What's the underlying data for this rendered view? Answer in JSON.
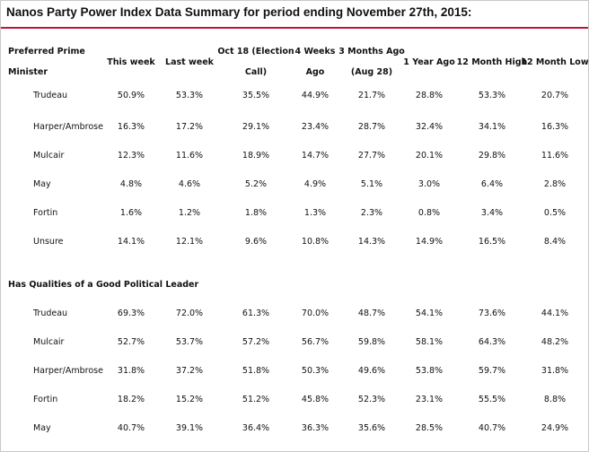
{
  "title": "Nanos Party Power Index Data Summary for period ending November 27th, 2015:",
  "columns": [
    [
      "This week"
    ],
    [
      "Last week"
    ],
    [
      "Oct 18 (Election",
      "Call)"
    ],
    [
      "4 Weeks",
      "Ago"
    ],
    [
      "3 Months Ago",
      "(Aug 28)"
    ],
    [
      "1 Year Ago"
    ],
    [
      "12 Month High"
    ],
    [
      "12 Month Low"
    ]
  ],
  "sections": [
    {
      "title_lines": [
        "Preferred Prime",
        "Minister"
      ],
      "rows": [
        {
          "name": "Trudeau",
          "values": [
            "50.9%",
            "53.3%",
            "35.5%",
            "44.9%",
            "21.7%",
            "28.8%",
            "53.3%",
            "20.7%"
          ]
        },
        {
          "name": "Harper/Ambrose",
          "values": [
            "16.3%",
            "17.2%",
            "29.1%",
            "23.4%",
            "28.7%",
            "32.4%",
            "34.1%",
            "16.3%"
          ]
        },
        {
          "name": "Mulcair",
          "values": [
            "12.3%",
            "11.6%",
            "18.9%",
            "14.7%",
            "27.7%",
            "20.1%",
            "29.8%",
            "11.6%"
          ]
        },
        {
          "name": "May",
          "values": [
            "4.8%",
            "4.6%",
            "5.2%",
            "4.9%",
            "5.1%",
            "3.0%",
            "6.4%",
            "2.8%"
          ]
        },
        {
          "name": "Fortin",
          "values": [
            "1.6%",
            "1.2%",
            "1.8%",
            "1.3%",
            "2.3%",
            "0.8%",
            "3.4%",
            "0.5%"
          ]
        },
        {
          "name": "Unsure",
          "values": [
            "14.1%",
            "12.1%",
            "9.6%",
            "10.8%",
            "14.3%",
            "14.9%",
            "16.5%",
            "8.4%"
          ]
        }
      ]
    },
    {
      "title_lines": [
        "Has Qualities of a Good Political Leader"
      ],
      "rows": [
        {
          "name": "Trudeau",
          "values": [
            "69.3%",
            "72.0%",
            "61.3%",
            "70.0%",
            "48.7%",
            "54.1%",
            "73.6%",
            "44.1%"
          ]
        },
        {
          "name": "Mulcair",
          "values": [
            "52.7%",
            "53.7%",
            "57.2%",
            "56.7%",
            "59.8%",
            "58.1%",
            "64.3%",
            "48.2%"
          ]
        },
        {
          "name": "Harper/Ambrose",
          "values": [
            "31.8%",
            "37.2%",
            "51.8%",
            "50.3%",
            "49.6%",
            "53.8%",
            "59.7%",
            "31.8%"
          ]
        },
        {
          "name": "Fortin",
          "values": [
            "18.2%",
            "15.2%",
            "51.2%",
            "45.8%",
            "52.3%",
            "23.1%",
            "55.5%",
            "8.8%"
          ]
        },
        {
          "name": "May",
          "values": [
            "40.7%",
            "39.1%",
            "36.4%",
            "36.3%",
            "35.6%",
            "28.5%",
            "40.7%",
            "24.9%"
          ]
        }
      ]
    }
  ]
}
